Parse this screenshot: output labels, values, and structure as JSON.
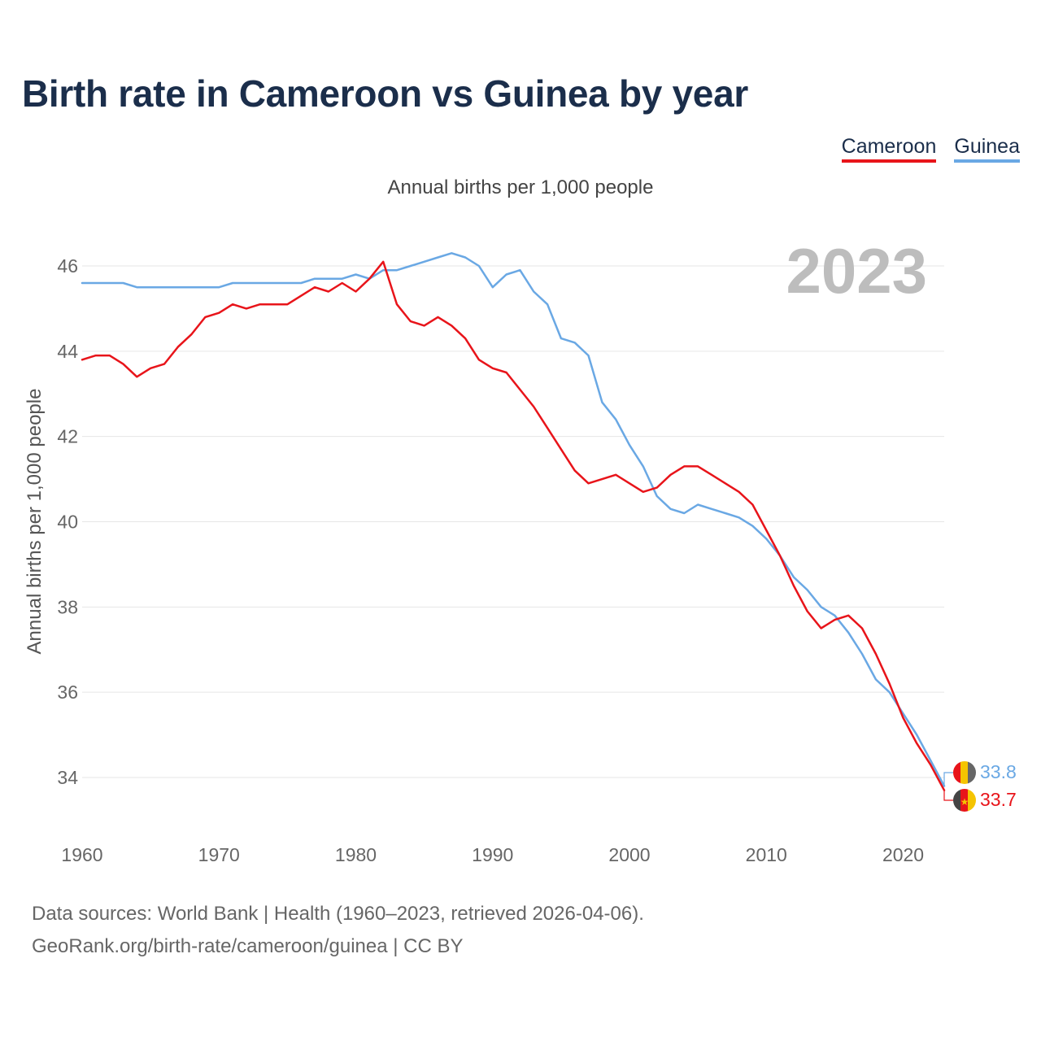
{
  "title": "Birth rate in Cameroon vs Guinea by year",
  "subtitle": "Annual births per 1,000 people",
  "legend": [
    {
      "name": "Cameroon",
      "color": "#e8141a"
    },
    {
      "name": "Guinea",
      "color": "#6aa8e4"
    }
  ],
  "year_display": "2023",
  "footer": {
    "line1": "Data sources: World Bank | Health (1960–2023, retrieved 2026-04-06).",
    "line2": "GeoRank.org/birth-rate/cameroon/guinea | CC BY"
  },
  "chart_data": {
    "type": "line",
    "title": "Birth rate in Cameroon vs Guinea by year",
    "ylabel": "Annual births per 1,000 people",
    "xlabel": "",
    "xlim": [
      1960,
      2023
    ],
    "ylim": [
      33,
      47
    ],
    "x_ticks": [
      1960,
      1970,
      1980,
      1990,
      2000,
      2010,
      2020
    ],
    "y_ticks": [
      34,
      36,
      38,
      40,
      42,
      44,
      46
    ],
    "grid": true,
    "x": [
      1960,
      1961,
      1962,
      1963,
      1964,
      1965,
      1966,
      1967,
      1968,
      1969,
      1970,
      1971,
      1972,
      1973,
      1974,
      1975,
      1976,
      1977,
      1978,
      1979,
      1980,
      1981,
      1982,
      1983,
      1984,
      1985,
      1986,
      1987,
      1988,
      1989,
      1990,
      1991,
      1992,
      1993,
      1994,
      1995,
      1996,
      1997,
      1998,
      1999,
      2000,
      2001,
      2002,
      2003,
      2004,
      2005,
      2006,
      2007,
      2008,
      2009,
      2010,
      2011,
      2012,
      2013,
      2014,
      2015,
      2016,
      2017,
      2018,
      2019,
      2020,
      2021,
      2022,
      2023
    ],
    "series": [
      {
        "name": "Cameroon",
        "color": "#e8141a",
        "end_label": "33.7",
        "values": [
          43.8,
          43.9,
          43.9,
          43.7,
          43.4,
          43.6,
          43.7,
          44.1,
          44.4,
          44.8,
          44.9,
          45.1,
          45.0,
          45.1,
          45.1,
          45.1,
          45.3,
          45.5,
          45.4,
          45.6,
          45.4,
          45.7,
          46.1,
          45.1,
          44.7,
          44.6,
          44.8,
          44.6,
          44.3,
          43.8,
          43.6,
          43.5,
          43.1,
          42.7,
          42.2,
          41.7,
          41.2,
          40.9,
          41.0,
          41.1,
          40.9,
          40.7,
          40.8,
          41.1,
          41.3,
          41.3,
          41.1,
          40.9,
          40.7,
          40.4,
          39.8,
          39.2,
          38.5,
          37.9,
          37.5,
          37.7,
          37.8,
          37.5,
          36.9,
          36.2,
          35.4,
          34.8,
          34.3,
          33.7
        ]
      },
      {
        "name": "Guinea",
        "color": "#6aa8e4",
        "end_label": "33.8",
        "values": [
          45.6,
          45.6,
          45.6,
          45.6,
          45.5,
          45.5,
          45.5,
          45.5,
          45.5,
          45.5,
          45.5,
          45.6,
          45.6,
          45.6,
          45.6,
          45.6,
          45.6,
          45.7,
          45.7,
          45.7,
          45.8,
          45.7,
          45.9,
          45.9,
          46.0,
          46.1,
          46.2,
          46.3,
          46.2,
          46.0,
          45.5,
          45.8,
          45.9,
          45.4,
          45.1,
          44.3,
          44.2,
          43.9,
          42.8,
          42.4,
          41.8,
          41.3,
          40.6,
          40.3,
          40.2,
          40.4,
          40.3,
          40.2,
          40.1,
          39.9,
          39.6,
          39.2,
          38.7,
          38.4,
          38.0,
          37.8,
          37.4,
          36.9,
          36.3,
          36.0,
          35.5,
          35.0,
          34.4,
          33.8
        ]
      }
    ]
  }
}
